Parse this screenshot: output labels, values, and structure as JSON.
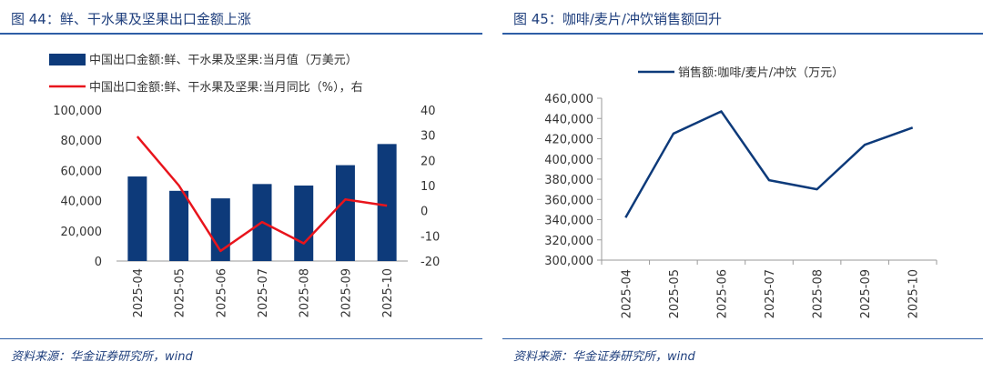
{
  "left_panel": {
    "title": "图 44：鲜、干水果及坚果出口金额上涨",
    "source": "资料来源：华金证券研究所，wind"
  },
  "right_panel": {
    "title": "图 45：咖啡/麦片/冲饮销售额回升",
    "source": "资料来源：华金证券研究所，wind"
  },
  "chart_data": [
    {
      "type": "bar+line",
      "categories": [
        "2025-04",
        "2025-05",
        "2025-06",
        "2025-07",
        "2025-08",
        "2025-09",
        "2025-10"
      ],
      "series": [
        {
          "name": "中国出口金额:鲜、干水果及坚果:当月值（万美元）",
          "type": "bar",
          "axis": "left",
          "values": [
            56000,
            46500,
            41500,
            51000,
            50000,
            63500,
            77500
          ],
          "color": "#0d3a7a"
        },
        {
          "name": "中国出口金额:鲜、干水果及坚果:当月同比（%），右",
          "type": "line",
          "axis": "right",
          "values": [
            29.5,
            10,
            -16,
            -4.5,
            -13,
            4.5,
            2
          ],
          "color": "#e8141c"
        }
      ],
      "y_left": {
        "min": 0,
        "max": 100000,
        "ticks": [
          "0",
          "20,000",
          "40,000",
          "60,000",
          "80,000",
          "100,000"
        ]
      },
      "y_right": {
        "min": -20,
        "max": 40,
        "ticks": [
          "-20",
          "-10",
          "0",
          "10",
          "20",
          "30",
          "40"
        ]
      }
    },
    {
      "type": "line",
      "categories": [
        "2025-04",
        "2025-05",
        "2025-06",
        "2025-07",
        "2025-08",
        "2025-09",
        "2025-10"
      ],
      "series": [
        {
          "name": "销售额:咖啡/麦片/冲饮（万元）",
          "values": [
            342000,
            425000,
            447000,
            379000,
            370000,
            414000,
            431000
          ],
          "color": "#0d3a7a"
        }
      ],
      "y": {
        "min": 300000,
        "max": 460000,
        "ticks": [
          "300,000",
          "320,000",
          "340,000",
          "360,000",
          "380,000",
          "400,000",
          "420,000",
          "440,000",
          "460,000"
        ]
      }
    }
  ]
}
